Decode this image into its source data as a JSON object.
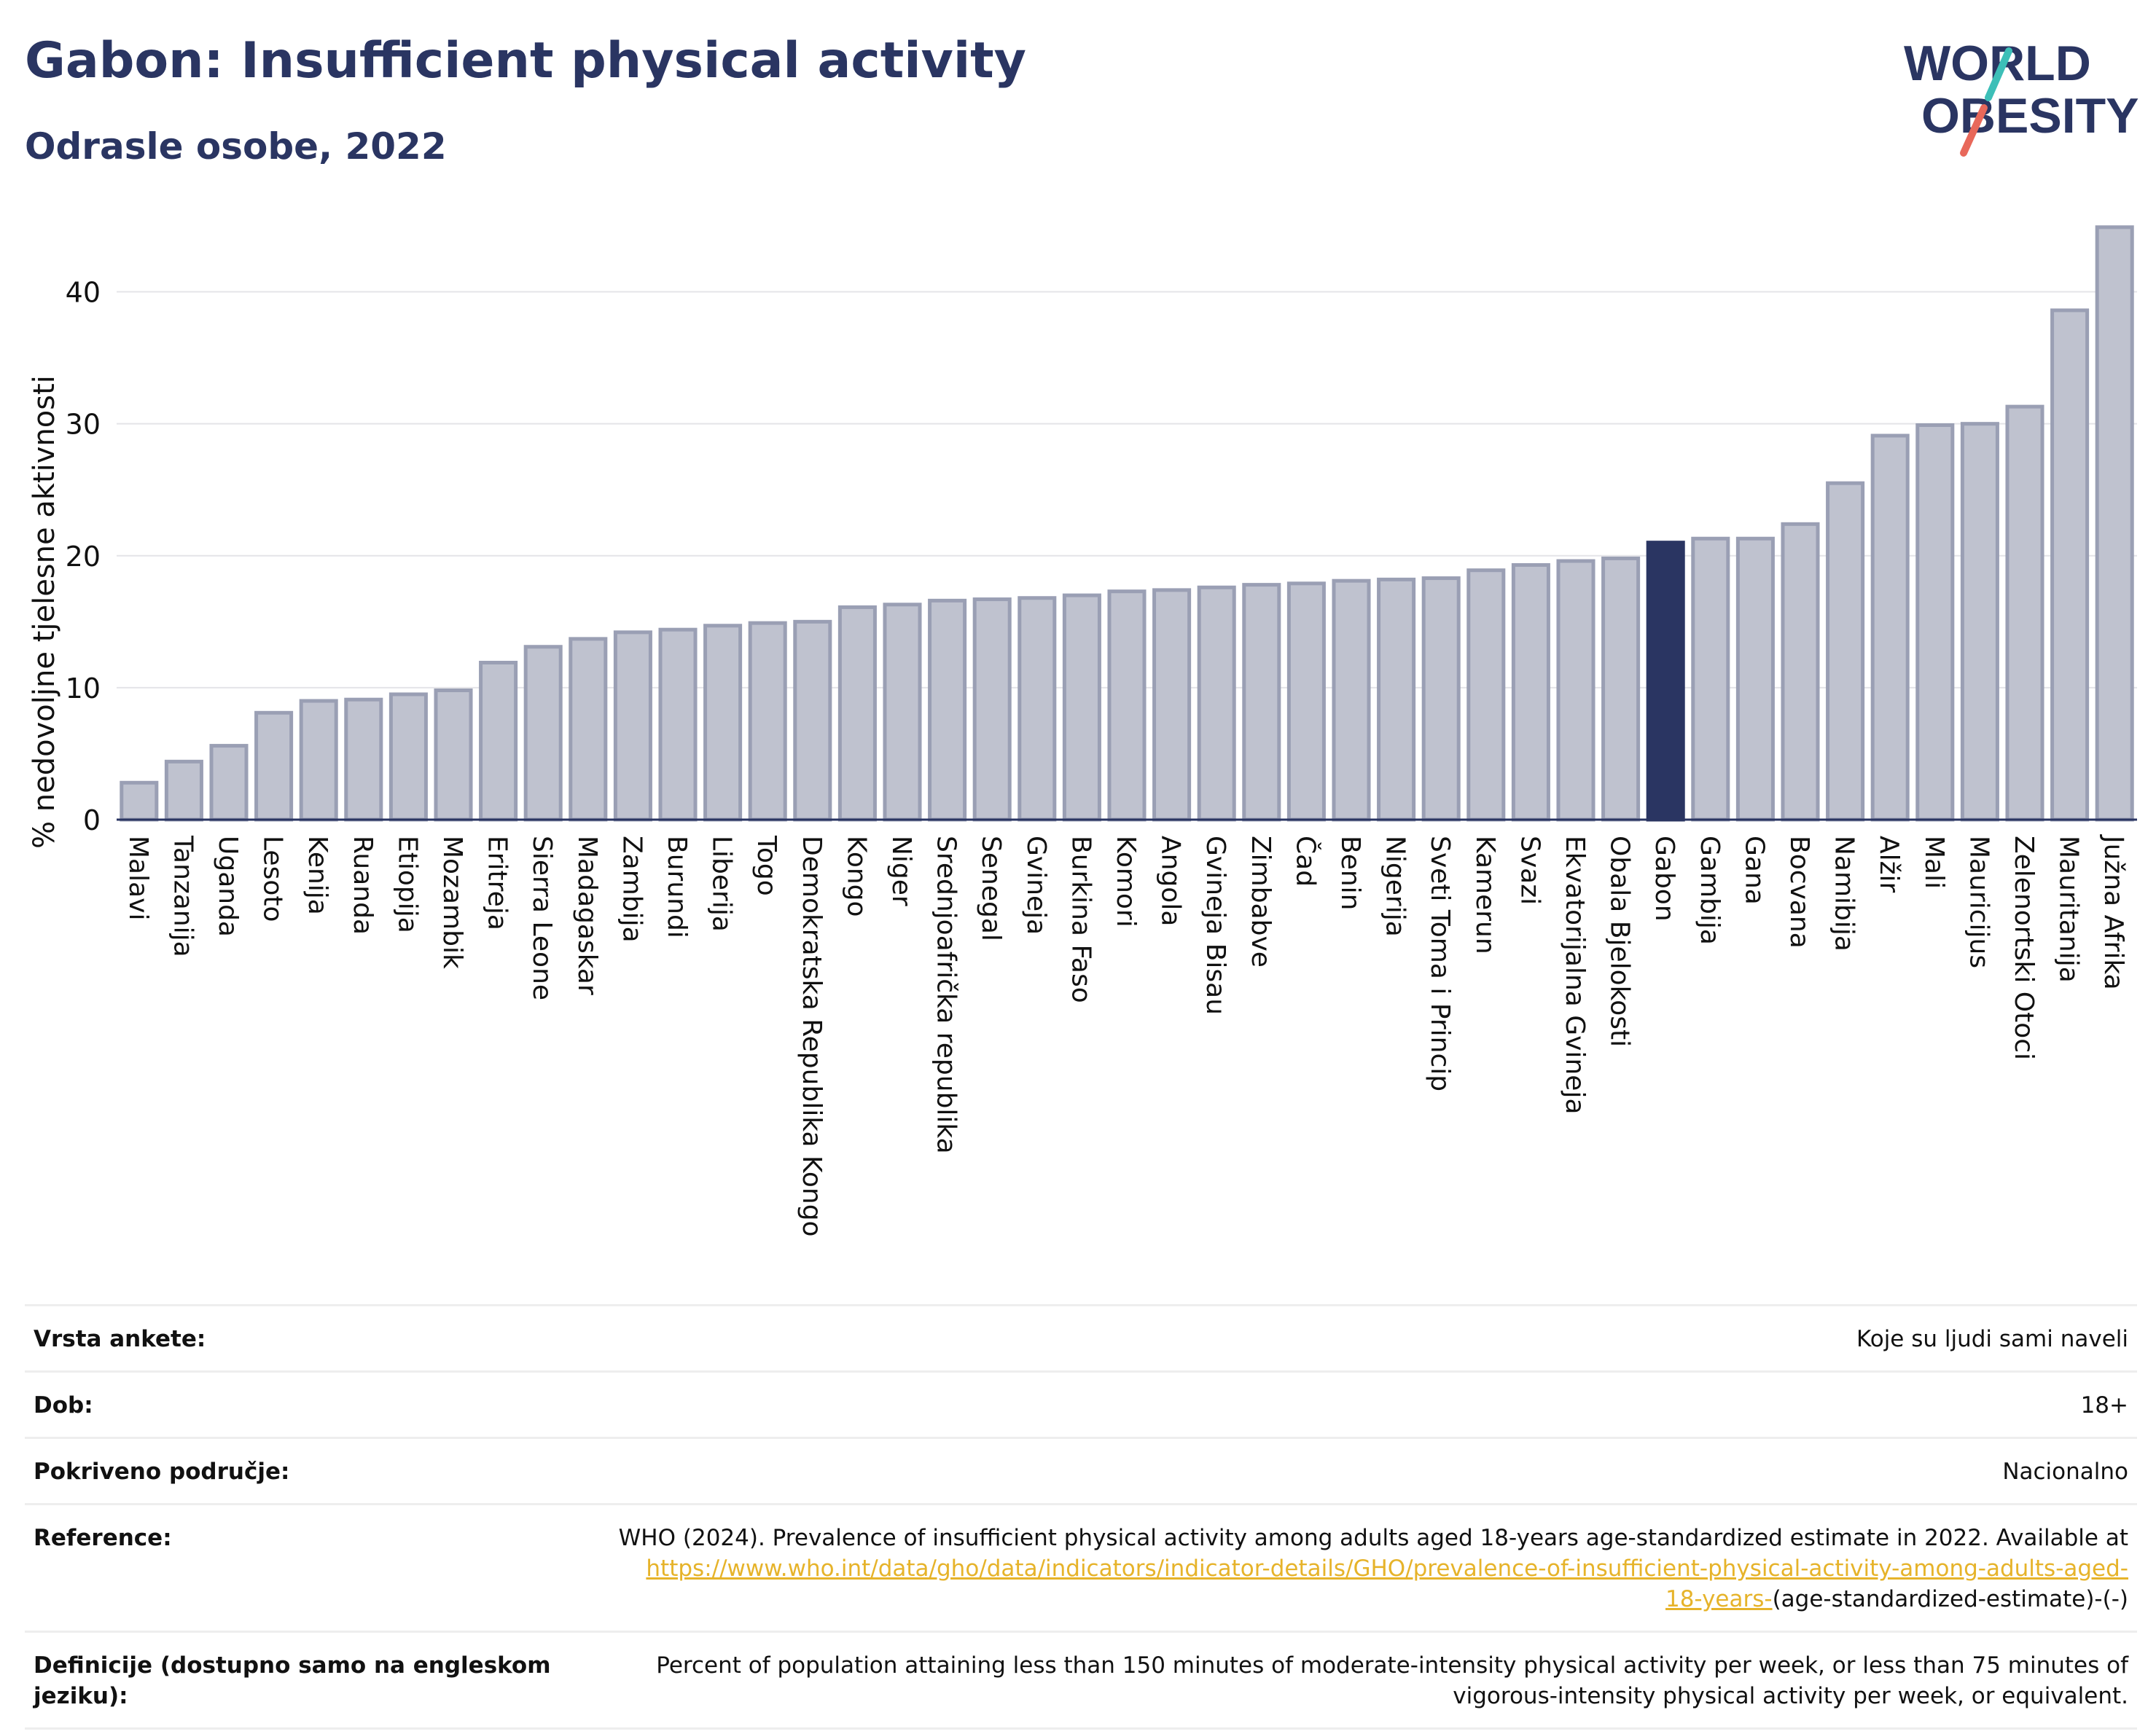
{
  "header": {
    "title": "Gabon: Insufficient physical activity",
    "subtitle": "Odrasle osobe, 2022"
  },
  "logo": {
    "line1": "WORLD",
    "line2": "OBESITY",
    "accent_red": "#e8685a",
    "accent_teal": "#3dbfb8"
  },
  "colors": {
    "bar": "#bfc2cf",
    "bar_edge": "#9a9fb4",
    "highlight": "#2a3562"
  },
  "chart_data": {
    "type": "bar",
    "ylabel": "% nedovoljne tjelesne aktivnosti",
    "ylim": [
      0,
      45
    ],
    "yticks": [
      0,
      10,
      20,
      30,
      40
    ],
    "grid": true,
    "highlight": "Gabon",
    "categories": [
      "Malavi",
      "Tanzanija",
      "Uganda",
      "Lesoto",
      "Kenija",
      "Ruanda",
      "Etiopija",
      "Mozambik",
      "Eritreja",
      "Sierra Leone",
      "Madagaskar",
      "Zambija",
      "Burundi",
      "Liberija",
      "Togo",
      "Demokratska Republika Kongo",
      "Kongo",
      "Niger",
      "Srednjoafrička republika",
      "Senegal",
      "Gvineja",
      "Burkina Faso",
      "Komori",
      "Angola",
      "Gvineja Bisau",
      "Zimbabve",
      "Čad",
      "Benin",
      "Nigerija",
      "Sveti Toma i Princip",
      "Kamerun",
      "Svazi",
      "Ekvatorijalna Gvineja",
      "Obala Bjelokosti",
      "Gabon",
      "Gambija",
      "Gana",
      "Bocvana",
      "Namibija",
      "Alžir",
      "Mali",
      "Mauricijus",
      "Zelenortski Otoci",
      "Mauritanija",
      "Južna Afrika"
    ],
    "values": [
      2.8,
      4.4,
      5.6,
      8.1,
      9.0,
      9.1,
      9.5,
      9.8,
      11.9,
      13.1,
      13.7,
      14.2,
      14.4,
      14.7,
      14.9,
      15.0,
      16.1,
      16.3,
      16.6,
      16.7,
      16.8,
      17.0,
      17.3,
      17.4,
      17.6,
      17.8,
      17.9,
      18.1,
      18.2,
      18.3,
      18.9,
      19.3,
      19.6,
      19.8,
      21.0,
      21.3,
      21.3,
      22.4,
      25.5,
      29.1,
      29.9,
      30.0,
      31.3,
      38.6,
      44.9
    ]
  },
  "info": {
    "rows": [
      {
        "label": "Vrsta ankete:",
        "value": "Koje su ljudi sami naveli"
      },
      {
        "label": "Dob:",
        "value": "18+"
      },
      {
        "label": "Pokriveno područje:",
        "value": "Nacionalno"
      }
    ],
    "reference": {
      "label": "Reference:",
      "text": "WHO (2024). Prevalence of insufficient physical activity among adults aged 18-years age-standardized estimate in 2022. Available at",
      "link_line1": "https://www.who.int/data/gho/data/indicators/indicator-details/GHO/prevalence-of-insufficient-physical-activity-among-adults-aged-",
      "link_line2": "18-years-",
      "suffix": "(age-standardized-estimate)-(-)"
    },
    "definition": {
      "label": "Definicije (dostupno samo na engleskom jeziku):",
      "text": "Percent of population attaining less than 150 minutes of moderate-intensity physical activity per week, or less than 75 minutes of vigorous-intensity physical activity per week, or equivalent."
    }
  }
}
